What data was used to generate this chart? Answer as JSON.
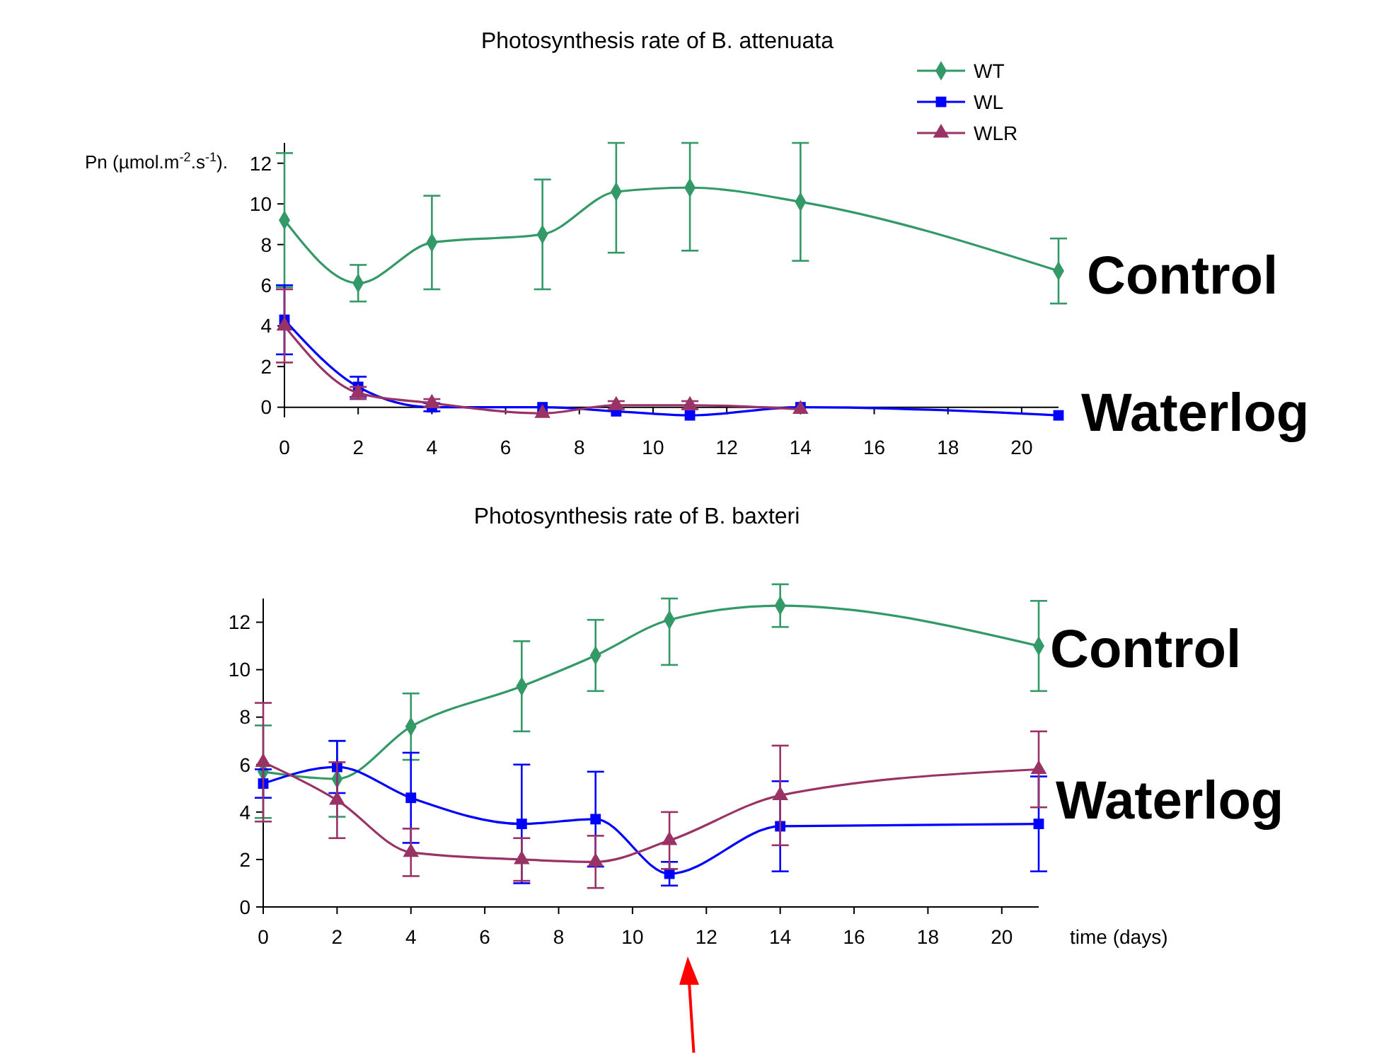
{
  "chart_data": [
    {
      "type": "line",
      "title": "Photosynthesis rate of B. attenuata",
      "ylabel": "Pn (µmol.m$^{-2}$.s$^{-1}$).",
      "x": [
        0,
        2,
        4,
        7,
        9,
        11,
        14,
        21
      ],
      "xlim": [
        0,
        21
      ],
      "xticks": [
        0,
        2,
        4,
        6,
        8,
        10,
        12,
        14,
        16,
        18,
        20
      ],
      "ylim": [
        -0.5,
        13
      ],
      "yticks": [
        0,
        2,
        4,
        6,
        8,
        10,
        12
      ],
      "grid": false,
      "legend": "top right",
      "line_style": "solid",
      "series": [
        {
          "name": "WT",
          "color": "#339966",
          "marker": "diamond",
          "values": [
            9.2,
            6.1,
            8.1,
            8.5,
            10.6,
            10.8,
            10.1,
            6.7
          ],
          "errors": [
            3.3,
            0.9,
            2.3,
            2.7,
            [
              7.6,
              13
            ],
            [
              7.7,
              13
            ],
            2.9,
            1.6
          ]
        },
        {
          "name": "WL",
          "color": "#0000ff",
          "marker": "square",
          "values": [
            4.3,
            1.0,
            0.0,
            0.0,
            -0.2,
            -0.4,
            0.0,
            -0.4
          ],
          "errors": [
            1.7,
            0.5,
            0.2,
            null,
            null,
            null,
            null,
            null
          ]
        },
        {
          "name": "WLR",
          "color": "#993366",
          "marker": "triangle",
          "values": [
            4.0,
            0.7,
            0.2,
            -0.3,
            0.1,
            0.1,
            -0.1,
            null
          ],
          "errors": [
            1.8,
            0.3,
            0.2,
            null,
            0.2,
            0.2,
            null,
            null
          ]
        }
      ],
      "annotations": [
        "Control",
        "Waterlog"
      ]
    },
    {
      "type": "line",
      "title": "Photosynthesis rate of B. baxteri",
      "xlabel": "time (days)",
      "x": [
        0,
        2,
        4,
        7,
        9,
        11,
        14,
        21
      ],
      "xlim": [
        0,
        21
      ],
      "xticks": [
        0,
        2,
        4,
        6,
        8,
        10,
        12,
        14,
        16,
        18,
        20
      ],
      "ylim": [
        0,
        13
      ],
      "yticks": [
        0,
        2,
        4,
        6,
        8,
        10,
        12
      ],
      "grid": false,
      "legend": false,
      "line_style": "solid",
      "series": [
        {
          "color": "#339966",
          "marker": "diamond",
          "values": [
            5.7,
            5.4,
            7.6,
            9.3,
            10.6,
            12.1,
            12.7,
            11.0
          ],
          "errors": [
            1.95,
            1.6,
            1.4,
            1.9,
            1.5,
            [
              10.2,
              13
            ],
            0.9,
            1.9
          ]
        },
        {
          "color": "#0000ff",
          "marker": "square",
          "values": [
            5.2,
            5.9,
            4.6,
            3.5,
            3.7,
            1.4,
            3.4,
            3.5
          ],
          "errors": [
            0.6,
            1.1,
            1.9,
            2.5,
            2.0,
            0.5,
            1.9,
            2.0
          ]
        },
        {
          "color": "#993366",
          "marker": "triangle",
          "values": [
            6.1,
            4.5,
            2.3,
            2.0,
            1.9,
            2.8,
            4.7,
            5.8
          ],
          "errors": [
            2.5,
            1.6,
            1.0,
            0.9,
            1.1,
            1.2,
            2.1,
            1.6
          ]
        }
      ],
      "annotations": [
        "Control",
        "Waterlog"
      ]
    }
  ]
}
